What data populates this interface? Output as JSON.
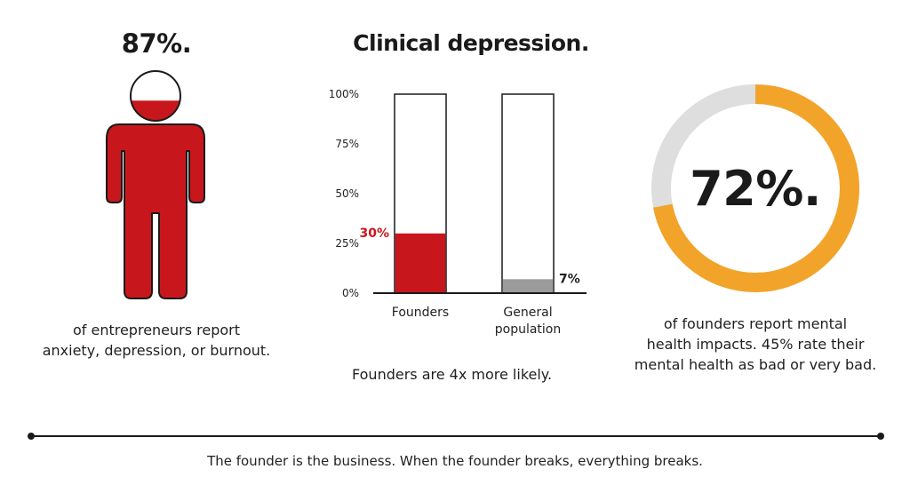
{
  "left_stat": {
    "value": "87%.",
    "caption_line1": "of entrepreneurs report",
    "caption_line2": "anxiety, depression, or burnout.",
    "fill_fraction": 0.87,
    "fill_color": "#c8171c"
  },
  "middle": {
    "title": "Clinical depression.",
    "note": "Founders are 4x more likely."
  },
  "chart_data": {
    "type": "bar",
    "title": "Clinical depression.",
    "categories": [
      "Founders",
      "General population"
    ],
    "category_labels": [
      [
        "Founders"
      ],
      [
        "General",
        "population"
      ]
    ],
    "values": [
      30,
      7
    ],
    "value_labels": [
      "30%",
      "7%"
    ],
    "ylim": [
      0,
      100
    ],
    "yticks": [
      0,
      25,
      50,
      75,
      100
    ],
    "ytick_labels": [
      "0%",
      "25%",
      "50%",
      "75%",
      "100%"
    ],
    "colors": [
      "#c8171c",
      "#9b9b9b"
    ],
    "label_colors": [
      "#c8171c",
      "#1f1f1f"
    ],
    "grid": false
  },
  "right_stat": {
    "value": "72%.",
    "caption_line1": "of founders report mental",
    "caption_line2": "health impacts. 45% rate their",
    "caption_line3": "mental health as bad or very bad.",
    "ring_fraction": 0.72,
    "ring_color": "#f2a42a",
    "track_color": "#dedede"
  },
  "footer": {
    "text": "The founder is the business. When the founder breaks, everything breaks."
  }
}
